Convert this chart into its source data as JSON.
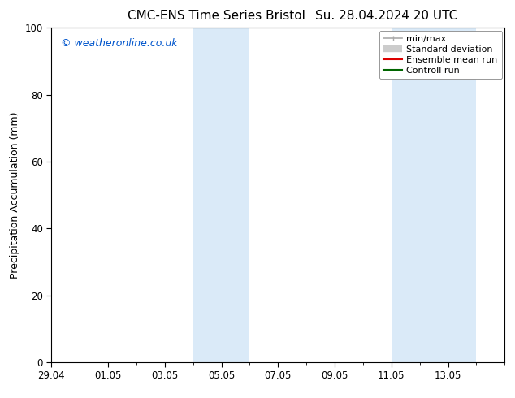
{
  "title_left": "CMC-ENS Time Series Bristol",
  "title_right": "Su. 28.04.2024 20 UTC",
  "ylabel": "Precipitation Accumulation (mm)",
  "watermark": "© weatheronline.co.uk",
  "watermark_color": "#0055cc",
  "ylim": [
    0,
    100
  ],
  "yticks": [
    0,
    20,
    40,
    60,
    80,
    100
  ],
  "xtick_labels": [
    "29.04",
    "01.05",
    "03.05",
    "05.05",
    "07.05",
    "09.05",
    "11.05",
    "13.05"
  ],
  "xtick_days_from_start": [
    0,
    2,
    4,
    6,
    8,
    10,
    12,
    14
  ],
  "background_color": "#ffffff",
  "plot_bg_color": "#ffffff",
  "shade_color": "#daeaf8",
  "shade_bands": [
    {
      "start_day": 5,
      "end_day": 7
    },
    {
      "start_day": 12,
      "end_day": 15
    }
  ],
  "total_days": 16,
  "legend_entries": [
    {
      "label": "min/max",
      "line_color": "#aaaaaa",
      "lw": 1.2
    },
    {
      "label": "Standard deviation",
      "line_color": "#cccccc",
      "lw": 6
    },
    {
      "label": "Ensemble mean run",
      "line_color": "#dd0000",
      "lw": 1.5
    },
    {
      "label": "Controll run",
      "line_color": "#006600",
      "lw": 1.5
    }
  ],
  "title_fontsize": 11,
  "axis_label_fontsize": 9,
  "tick_fontsize": 8.5,
  "legend_fontsize": 8,
  "watermark_fontsize": 9
}
